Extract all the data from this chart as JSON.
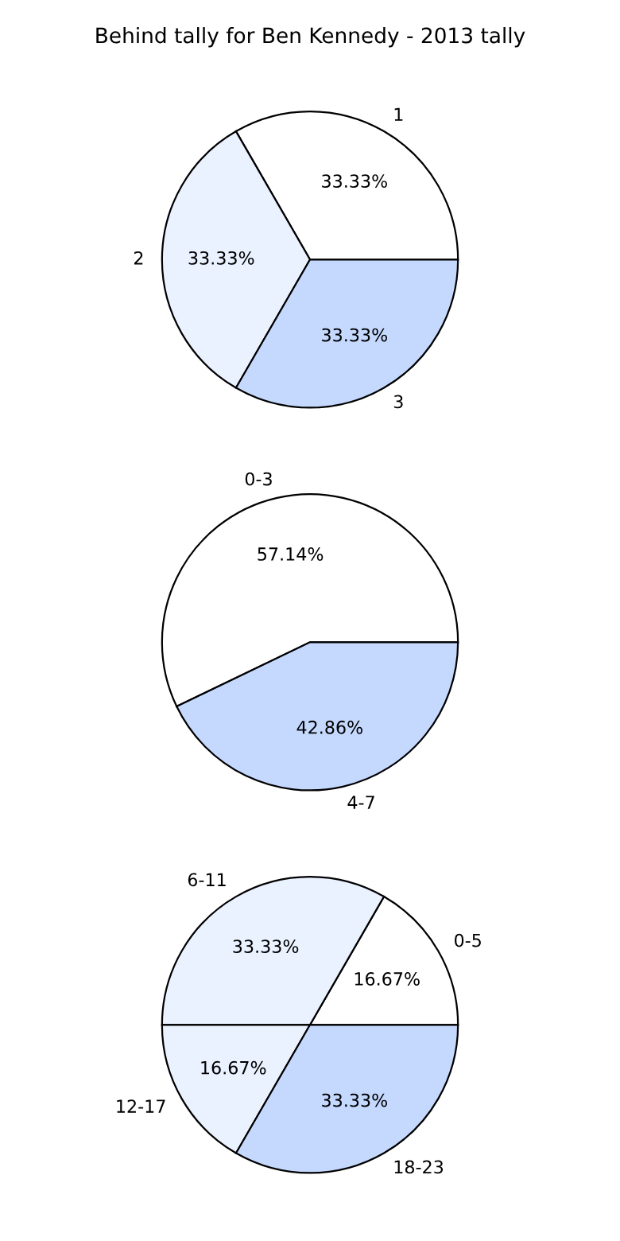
{
  "chart_data": [
    {
      "type": "pie",
      "title": "Behind tally for Ben Kennedy - 2013 tally",
      "categories": [
        "1",
        "2",
        "3"
      ],
      "values": [
        33.33,
        33.33,
        33.33
      ],
      "value_labels": [
        "33.33%",
        "33.33%",
        "33.33%"
      ],
      "colors": [
        "#ffffff",
        "#eaf1ff",
        "#c5d9ff"
      ]
    },
    {
      "type": "pie",
      "categories": [
        "0-3",
        "4-7"
      ],
      "values": [
        57.14,
        42.86
      ],
      "value_labels": [
        "57.14%",
        "42.86%"
      ],
      "colors": [
        "#ffffff",
        "#c5d9ff"
      ]
    },
    {
      "type": "pie",
      "categories": [
        "0-5",
        "6-11",
        "12-17",
        "18-23"
      ],
      "values": [
        16.67,
        33.33,
        16.67,
        33.33
      ],
      "value_labels": [
        "16.67%",
        "33.33%",
        "16.67%",
        "33.33%"
      ],
      "colors": [
        "#ffffff",
        "#eaf1ff",
        "#eaf1ff",
        "#c5d9ff"
      ]
    }
  ]
}
